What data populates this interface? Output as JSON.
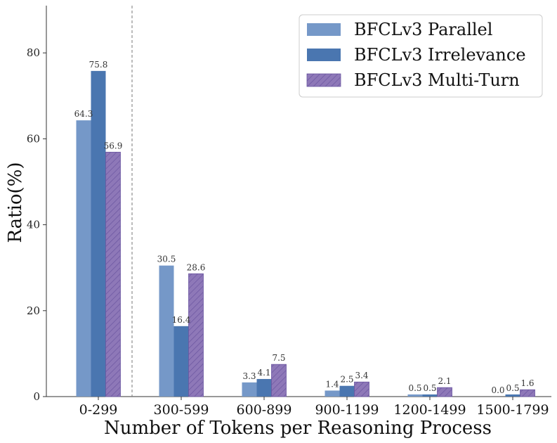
{
  "chart_data": {
    "type": "bar",
    "xlabel": "Number of Tokens per Reasoning Process",
    "ylabel": "Ratio(%)",
    "ylim": [
      0,
      91
    ],
    "yticks": [
      0,
      20,
      40,
      60,
      80
    ],
    "grid": false,
    "legend_position": "top-right",
    "categories": [
      "0-299",
      "300-599",
      "600-899",
      "900-1199",
      "1200-1499",
      "1500-1799"
    ],
    "series": [
      {
        "name": "BFCLv3 Parallel",
        "color": "#7598c8",
        "hatch": false,
        "values": [
          64.3,
          30.5,
          3.3,
          1.4,
          0.5,
          0.0
        ],
        "labels": [
          "64.3",
          "30.5",
          "3.3",
          "1.4",
          "0.5",
          "0.0"
        ]
      },
      {
        "name": "BFCLv3 Irrelevance",
        "color": "#4a76b0",
        "hatch": false,
        "values": [
          75.8,
          16.4,
          4.1,
          2.5,
          0.5,
          0.5
        ],
        "labels": [
          "75.8",
          "16.4",
          "4.1",
          "2.5",
          "0.5",
          "0.5"
        ]
      },
      {
        "name": "BFCLv3 Multi-Turn",
        "color": "#8e78b8",
        "hatch": true,
        "values": [
          56.9,
          28.6,
          7.5,
          3.4,
          2.1,
          1.6
        ],
        "labels": [
          "56.9",
          "28.6",
          "7.5",
          "3.4",
          "2.1",
          "1.6"
        ]
      }
    ],
    "annotations": [
      {
        "type": "vertical-dashed-line",
        "between_categories": [
          "0-299",
          "300-599"
        ]
      }
    ]
  }
}
